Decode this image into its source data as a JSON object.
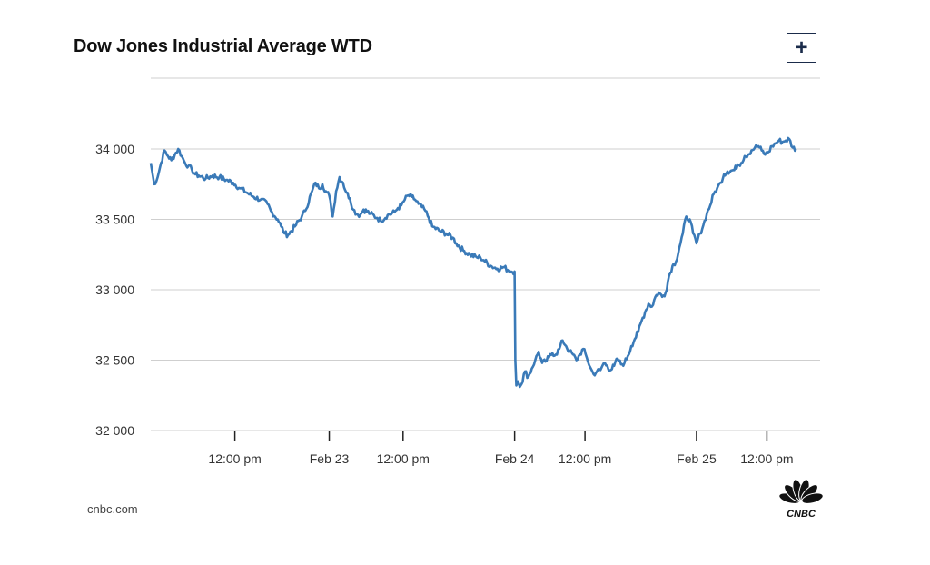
{
  "header": {
    "title": "Dow Jones Industrial Average WTD",
    "expand_label": "+"
  },
  "footer": {
    "source": "cnbc.com"
  },
  "logo": {
    "text": "CNBC",
    "colors": [
      "#fcb711",
      "#f37021",
      "#cc004c",
      "#6460aa",
      "#0089d0",
      "#0db14b"
    ]
  },
  "chart_data": {
    "type": "line",
    "title": "Dow Jones Industrial Average WTD",
    "xlabel": "",
    "ylabel": "",
    "ylim": [
      32000,
      34500
    ],
    "yticks": [
      {
        "value": 34000,
        "label": "34 000"
      },
      {
        "value": 33500,
        "label": "33 500"
      },
      {
        "value": 33000,
        "label": "33 000"
      },
      {
        "value": 32500,
        "label": "32 500"
      },
      {
        "value": 32000,
        "label": "32 000"
      }
    ],
    "xlim": [
      0,
      195
    ],
    "x_unit": "hours since Feb 22 09:30",
    "xticks": [
      {
        "value": 24.5,
        "label": "12:00 pm"
      },
      {
        "value": 52,
        "label": "Feb 23"
      },
      {
        "value": 73.5,
        "label": "12:00 pm"
      },
      {
        "value": 106,
        "label": "Feb 24"
      },
      {
        "value": 126.5,
        "label": "12:00 pm"
      },
      {
        "value": 159,
        "label": "Feb 25"
      },
      {
        "value": 179.5,
        "label": "12:00 pm"
      }
    ],
    "grid": true,
    "line_color": "#3a7ab8",
    "series": [
      {
        "name": "",
        "points": [
          [
            0,
            33900
          ],
          [
            1,
            33750
          ],
          [
            2,
            33800
          ],
          [
            3,
            33900
          ],
          [
            4,
            33990
          ],
          [
            5,
            33950
          ],
          [
            6,
            33920
          ],
          [
            7,
            33960
          ],
          [
            8,
            34000
          ],
          [
            9,
            33950
          ],
          [
            10,
            33900
          ],
          [
            11,
            33880
          ],
          [
            12,
            33850
          ],
          [
            13,
            33820
          ],
          [
            14,
            33810
          ],
          [
            16,
            33790
          ],
          [
            18,
            33810
          ],
          [
            20,
            33800
          ],
          [
            22,
            33780
          ],
          [
            24,
            33760
          ],
          [
            26,
            33720
          ],
          [
            28,
            33690
          ],
          [
            30,
            33660
          ],
          [
            32,
            33640
          ],
          [
            34,
            33610
          ],
          [
            35,
            33560
          ],
          [
            37,
            33500
          ],
          [
            38,
            33450
          ],
          [
            39,
            33400
          ],
          [
            40,
            33390
          ],
          [
            42,
            33450
          ],
          [
            44,
            33520
          ],
          [
            45,
            33560
          ],
          [
            47,
            33700
          ],
          [
            48,
            33760
          ],
          [
            49,
            33720
          ],
          [
            50,
            33750
          ],
          [
            51,
            33700
          ],
          [
            52,
            33670
          ],
          [
            53,
            33520
          ],
          [
            54,
            33700
          ],
          [
            55,
            33800
          ],
          [
            56,
            33760
          ],
          [
            57,
            33690
          ],
          [
            58,
            33650
          ],
          [
            59,
            33570
          ],
          [
            60,
            33540
          ],
          [
            61,
            33530
          ],
          [
            62,
            33570
          ],
          [
            64,
            33540
          ],
          [
            66,
            33510
          ],
          [
            67,
            33490
          ],
          [
            69,
            33530
          ],
          [
            71,
            33550
          ],
          [
            72,
            33580
          ],
          [
            73,
            33600
          ],
          [
            74,
            33640
          ],
          [
            75,
            33670
          ],
          [
            76,
            33660
          ],
          [
            77,
            33640
          ],
          [
            78,
            33610
          ],
          [
            80,
            33560
          ],
          [
            81,
            33510
          ],
          [
            82,
            33450
          ],
          [
            84,
            33420
          ],
          [
            86,
            33400
          ],
          [
            88,
            33370
          ],
          [
            89,
            33330
          ],
          [
            91,
            33280
          ],
          [
            93,
            33250
          ],
          [
            95,
            33230
          ],
          [
            96,
            33230
          ],
          [
            97,
            33210
          ],
          [
            99,
            33170
          ],
          [
            101,
            33150
          ],
          [
            103,
            33160
          ],
          [
            104,
            33140
          ],
          [
            105,
            33130
          ],
          [
            106,
            33130
          ],
          [
            106.2,
            32500
          ],
          [
            106.5,
            32320
          ],
          [
            107,
            32350
          ],
          [
            107.5,
            32310
          ],
          [
            108,
            32330
          ],
          [
            109,
            32420
          ],
          [
            110,
            32380
          ],
          [
            111,
            32440
          ],
          [
            112,
            32500
          ],
          [
            113,
            32560
          ],
          [
            114,
            32480
          ],
          [
            115,
            32490
          ],
          [
            116,
            32520
          ],
          [
            117,
            32550
          ],
          [
            118,
            32540
          ],
          [
            119,
            32580
          ],
          [
            120,
            32640
          ],
          [
            121,
            32600
          ],
          [
            122,
            32560
          ],
          [
            123,
            32540
          ],
          [
            124,
            32500
          ],
          [
            125,
            32540
          ],
          [
            126,
            32580
          ],
          [
            127,
            32520
          ],
          [
            128,
            32450
          ],
          [
            129,
            32400
          ],
          [
            130,
            32420
          ],
          [
            131,
            32430
          ],
          [
            132,
            32480
          ],
          [
            133,
            32460
          ],
          [
            134,
            32430
          ],
          [
            135,
            32460
          ],
          [
            136,
            32510
          ],
          [
            137,
            32470
          ],
          [
            138,
            32480
          ],
          [
            139,
            32530
          ],
          [
            140,
            32600
          ],
          [
            141,
            32650
          ],
          [
            142,
            32700
          ],
          [
            143,
            32780
          ],
          [
            144,
            32840
          ],
          [
            145,
            32900
          ],
          [
            146,
            32880
          ],
          [
            147,
            32950
          ],
          [
            148,
            32980
          ],
          [
            149,
            32950
          ],
          [
            150,
            32980
          ],
          [
            151,
            33100
          ],
          [
            152,
            33170
          ],
          [
            153,
            33200
          ],
          [
            154,
            33300
          ],
          [
            155,
            33400
          ],
          [
            156,
            33520
          ],
          [
            157,
            33500
          ],
          [
            158,
            33400
          ],
          [
            159,
            33330
          ],
          [
            160,
            33400
          ],
          [
            161,
            33460
          ],
          [
            162,
            33540
          ],
          [
            163,
            33600
          ],
          [
            164,
            33680
          ],
          [
            165,
            33720
          ],
          [
            166,
            33760
          ],
          [
            167,
            33820
          ],
          [
            168,
            33840
          ],
          [
            170,
            33850
          ],
          [
            171,
            33890
          ],
          [
            172,
            33900
          ],
          [
            173,
            33950
          ],
          [
            174,
            33960
          ],
          [
            175,
            33990
          ],
          [
            176,
            34010
          ],
          [
            177,
            34020
          ],
          [
            178,
            33990
          ],
          [
            179,
            33960
          ],
          [
            180,
            33980
          ],
          [
            181,
            34020
          ],
          [
            182,
            34040
          ],
          [
            183,
            34060
          ],
          [
            184,
            34050
          ],
          [
            185,
            34060
          ],
          [
            186,
            34070
          ],
          [
            187,
            34010
          ],
          [
            188,
            34000
          ]
        ]
      }
    ]
  }
}
